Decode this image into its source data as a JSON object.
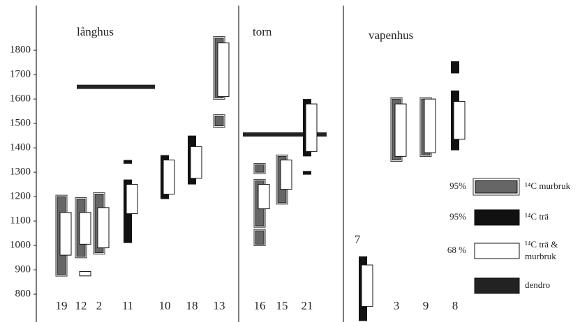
{
  "chart_data": {
    "type": "range",
    "ylim": [
      686,
      2006
    ],
    "yticks": [
      800,
      900,
      1000,
      1100,
      1200,
      1300,
      1400,
      1500,
      1600,
      1700,
      1800
    ],
    "legend": [
      {
        "level": "95%",
        "label": "¹⁴C murbruk",
        "color": "#666666"
      },
      {
        "level": "95%",
        "label": "¹⁴C trä",
        "color": "#111111"
      },
      {
        "level": "68 %",
        "label": "¹⁴C trä & murbruk",
        "color": "#ffffff"
      },
      {
        "label": "dendro",
        "color": "#222222"
      }
    ],
    "panels": [
      {
        "title": "långhus",
        "dendro": [
          1650
        ],
        "samples": [
          {
            "label": "19",
            "ranges": [
              {
                "k": 0,
                "from": 880,
                "to": 1200
              },
              {
                "k": 2,
                "from": 960,
                "to": 1135
              }
            ]
          },
          {
            "label": "12",
            "ranges": [
              {
                "k": 0,
                "from": 955,
                "to": 1190
              },
              {
                "k": 2,
                "from": 1005,
                "to": 1135
              },
              {
                "k": 2,
                "from": 875,
                "to": 893
              }
            ]
          },
          {
            "label": "2",
            "ranges": [
              {
                "k": 0,
                "from": 970,
                "to": 1210
              },
              {
                "k": 2,
                "from": 990,
                "to": 1155
              }
            ]
          },
          {
            "label": "11",
            "ranges": [
              {
                "k": 1,
                "from": 1010,
                "to": 1270
              },
              {
                "k": 2,
                "from": 1130,
                "to": 1250
              },
              {
                "k": 1,
                "from": 1335,
                "to": 1350
              }
            ]
          },
          {
            "label": "10",
            "ranges": [
              {
                "k": 1,
                "from": 1190,
                "to": 1370
              },
              {
                "k": 2,
                "from": 1210,
                "to": 1350
              }
            ]
          },
          {
            "label": "18",
            "ranges": [
              {
                "k": 1,
                "from": 1250,
                "to": 1450
              },
              {
                "k": 2,
                "from": 1275,
                "to": 1405
              }
            ]
          },
          {
            "label": "13",
            "ranges": [
              {
                "k": 0,
                "from": 1605,
                "to": 1850
              },
              {
                "k": 2,
                "from": 1610,
                "to": 1830
              },
              {
                "k": 0,
                "from": 1490,
                "to": 1530
              }
            ]
          }
        ]
      },
      {
        "title": "torn",
        "dendro": [
          1455
        ],
        "samples": [
          {
            "label": "16",
            "ranges": [
              {
                "k": 0,
                "from": 1080,
                "to": 1265
              },
              {
                "k": 2,
                "from": 1150,
                "to": 1250
              },
              {
                "k": 0,
                "from": 1300,
                "to": 1330
              },
              {
                "k": 0,
                "from": 1005,
                "to": 1060
              }
            ]
          },
          {
            "label": "15",
            "ranges": [
              {
                "k": 0,
                "from": 1175,
                "to": 1365
              },
              {
                "k": 2,
                "from": 1230,
                "to": 1350
              }
            ]
          },
          {
            "label": "21",
            "ranges": [
              {
                "k": 1,
                "from": 1365,
                "to": 1600
              },
              {
                "k": 2,
                "from": 1385,
                "to": 1580
              },
              {
                "k": 1,
                "from": 1290,
                "to": 1305
              }
            ]
          }
        ]
      },
      {
        "title": "vapenhus",
        "samples": [
          {
            "label": "7",
            "ranges": [
              {
                "k": 1,
                "from": 690,
                "to": 955
              },
              {
                "k": 2,
                "from": 750,
                "to": 920
              }
            ]
          },
          {
            "label": "3",
            "ranges": [
              {
                "k": 0,
                "from": 1350,
                "to": 1600
              },
              {
                "k": 2,
                "from": 1365,
                "to": 1580
              }
            ]
          },
          {
            "label": "9",
            "ranges": [
              {
                "k": 0,
                "from": 1370,
                "to": 1600
              },
              {
                "k": 2,
                "from": 1380,
                "to": 1600
              }
            ]
          },
          {
            "label": "8",
            "ranges": [
              {
                "k": 1,
                "from": 1705,
                "to": 1755
              },
              {
                "k": 1,
                "from": 1390,
                "to": 1635
              },
              {
                "k": 2,
                "from": 1435,
                "to": 1590
              }
            ]
          }
        ]
      }
    ]
  }
}
